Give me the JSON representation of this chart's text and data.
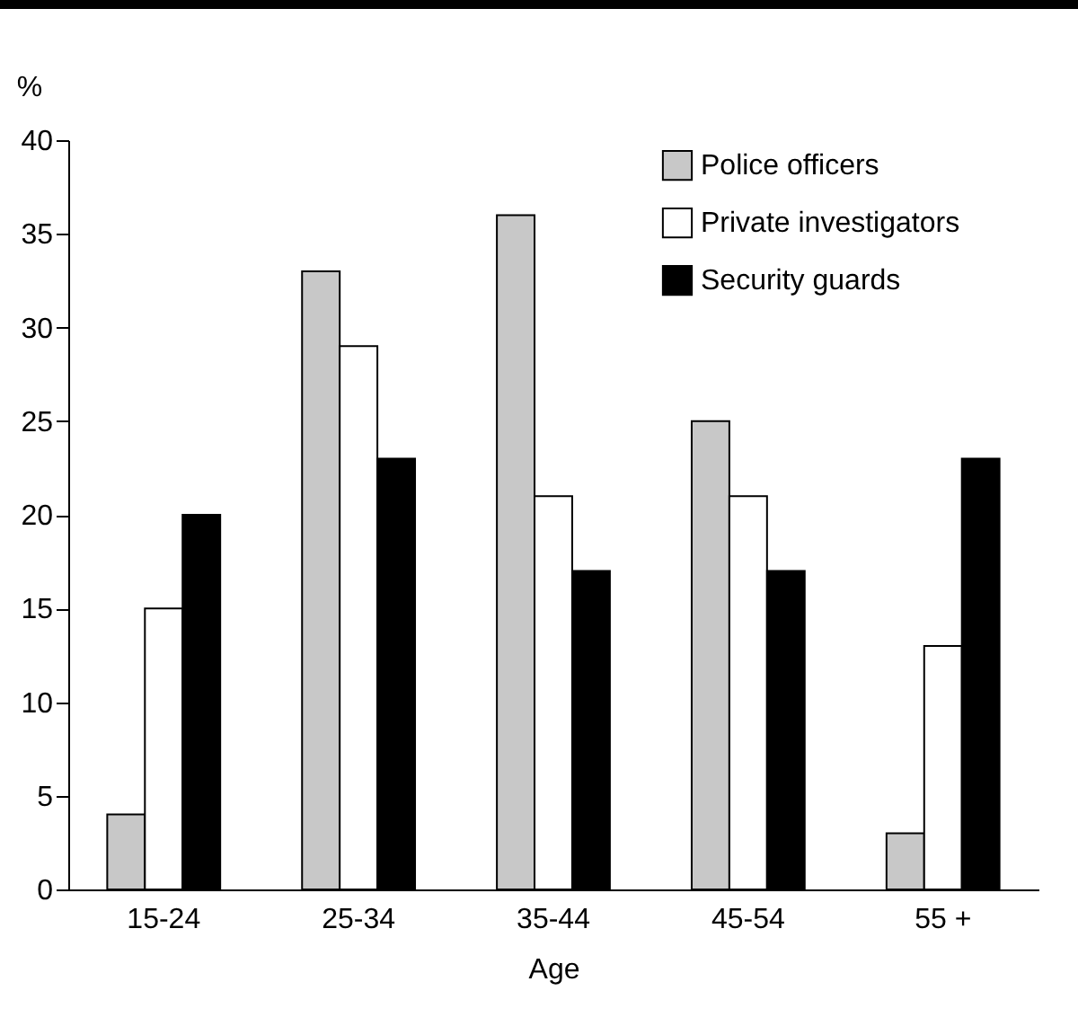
{
  "chart_data": {
    "type": "bar",
    "xlabel": "Age",
    "ylabel": "%",
    "categories": [
      "15-24",
      "25-34",
      "35-44",
      "45-54",
      "55 +"
    ],
    "series": [
      {
        "name": "Police officers",
        "color": "#c8c8c8",
        "values": [
          4,
          33,
          36,
          25,
          3
        ]
      },
      {
        "name": "Private investigators",
        "color": "#ffffff",
        "values": [
          15,
          29,
          21,
          21,
          13
        ]
      },
      {
        "name": "Security guards",
        "color": "#000000",
        "values": [
          20,
          23,
          17,
          17,
          23
        ]
      }
    ],
    "ylim": [
      0,
      40
    ],
    "yticks": [
      0,
      5,
      10,
      15,
      20,
      25,
      30,
      35,
      40
    ],
    "grid": false,
    "legend": "top right"
  }
}
